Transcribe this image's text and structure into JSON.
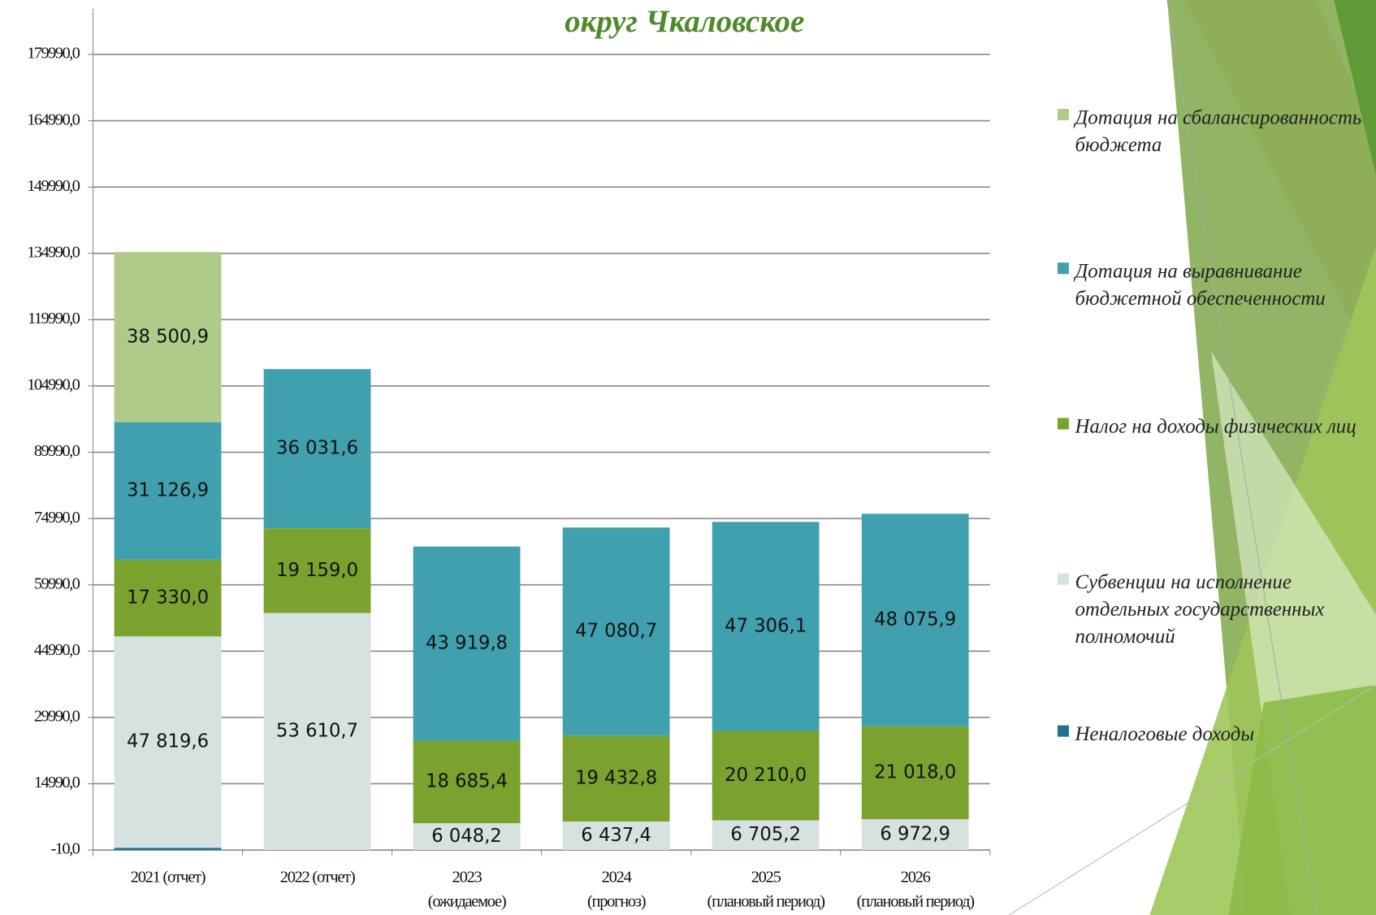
{
  "chart_data": {
    "type": "bar",
    "stacked": true,
    "title": "округ Чкаловское",
    "categories": [
      [
        "2021 (отчет)"
      ],
      [
        "2022 (отчет)"
      ],
      [
        "2023",
        "(ожидаемое)"
      ],
      [
        "2024",
        "(прогноз)"
      ],
      [
        "2025",
        "(плановый период)"
      ],
      [
        "2026",
        "(плановый период)"
      ]
    ],
    "series": [
      {
        "name": "Неналоговые доходы",
        "color": "#1f7391",
        "values": [
          500,
          0,
          0,
          0,
          0,
          0
        ]
      },
      {
        "name": "Субвенции на исполнение отдельных государственных полномочий",
        "color": "#d6e2df",
        "values": [
          47819.6,
          53610.7,
          6048.2,
          6437.4,
          6705.2,
          6972.9
        ],
        "value_labels": [
          "47 819,6",
          "53 610,7",
          "6 048,2",
          "6 437,4",
          "6 705,2",
          "6 972,9"
        ]
      },
      {
        "name": "Налог на доходы физических лиц",
        "color": "#7aa22e",
        "values": [
          17330.0,
          19159.0,
          18685.4,
          19432.8,
          20210.0,
          21018.0
        ],
        "value_labels": [
          "17 330,0",
          "19 159,0",
          "18 685,4",
          "19 432,8",
          "20 210,0",
          "21 018,0"
        ]
      },
      {
        "name": "Дотация на выравнивание бюджетной обеспеченности",
        "color": "#41a0ae",
        "values": [
          31126.9,
          36031.6,
          43919.8,
          47080.7,
          47306.1,
          48075.9
        ],
        "value_labels": [
          "31 126,9",
          "36 031,6",
          "43 919,8",
          "47 080,7",
          "47 306,1",
          "48 075,9"
        ]
      },
      {
        "name": "Дотация на сбалансированность бюджета",
        "color": "#aecb8a",
        "values": [
          38500.9,
          null,
          null,
          null,
          null,
          null
        ],
        "value_labels": [
          "38 500,9",
          null,
          null,
          null,
          null,
          null
        ]
      }
    ],
    "ylim": [
      -10,
      179990
    ],
    "yticks": [
      {
        "value": -10,
        "label": "-10,0"
      },
      {
        "value": 14990,
        "label": "14990,0"
      },
      {
        "value": 29990,
        "label": "29990,0"
      },
      {
        "value": 44990,
        "label": "44990,0"
      },
      {
        "value": 59990,
        "label": "59990,0"
      },
      {
        "value": 74990,
        "label": "74990,0"
      },
      {
        "value": 89990,
        "label": "89990,0"
      },
      {
        "value": 104990,
        "label": "104990,0"
      },
      {
        "value": 119990,
        "label": "119990,0"
      },
      {
        "value": 134990,
        "label": "134990,0"
      },
      {
        "value": 149990,
        "label": "149990,0"
      },
      {
        "value": 164990,
        "label": "164990,0"
      },
      {
        "value": 179990,
        "label": "179990,0"
      }
    ],
    "grid": true,
    "legend": "right"
  }
}
